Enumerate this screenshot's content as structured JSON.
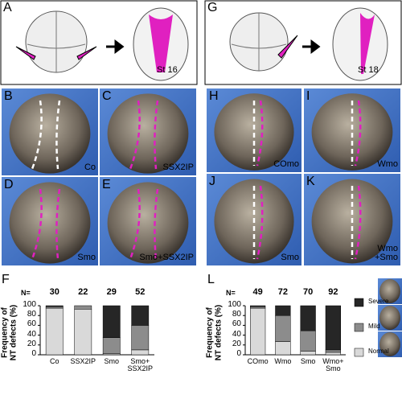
{
  "schematics": [
    {
      "letter": "A",
      "stage": "St 16"
    },
    {
      "letter": "G",
      "stage": "St 18"
    }
  ],
  "photos": [
    {
      "letter": "B",
      "label": "Co"
    },
    {
      "letter": "C",
      "label": "SSX2IP"
    },
    {
      "letter": "D",
      "label": "Smo"
    },
    {
      "letter": "E",
      "label": "Smo+SSX2IP"
    },
    {
      "letter": "H",
      "label": "COmo"
    },
    {
      "letter": "I",
      "label": "Wmo"
    },
    {
      "letter": "J",
      "label": "Smo"
    },
    {
      "letter": "K",
      "label": "Wmo\n+Smo"
    }
  ],
  "chart_data": [
    {
      "type": "bar",
      "stacked": true,
      "title": "F",
      "n_label": "N=",
      "n": [
        30,
        22,
        29,
        52
      ],
      "ylabel": "Frequency of\nNT defects (%)",
      "categories": [
        "Co",
        "SSX2IP",
        "Smo",
        "Smo+\nSSX2IP"
      ],
      "series": [
        {
          "color": "#d9d9d9",
          "values": [
            95,
            93,
            2,
            10
          ]
        },
        {
          "color": "#8c8c8c",
          "values": [
            3,
            7,
            33,
            50
          ]
        },
        {
          "color": "#262626",
          "values": [
            2,
            0,
            65,
            40
          ]
        }
      ],
      "ylim": [
        0,
        100
      ],
      "yticks": [
        0,
        20,
        40,
        60,
        80,
        100
      ]
    },
    {
      "type": "bar",
      "stacked": true,
      "title": "L",
      "n_label": "N=",
      "n": [
        49,
        72,
        70,
        92
      ],
      "ylabel": "Frequency of\nNT defects (%)",
      "categories": [
        "COmo",
        "Wmo",
        "Smo",
        "Wmo+\nSmo"
      ],
      "series": [
        {
          "name": "Normal",
          "color": "#d9d9d9",
          "values": [
            95,
            27,
            7,
            5
          ]
        },
        {
          "name": "Mild",
          "color": "#8c8c8c",
          "values": [
            3,
            53,
            42,
            5
          ]
        },
        {
          "name": "Severe",
          "color": "#262626",
          "values": [
            2,
            20,
            51,
            90
          ]
        }
      ],
      "ylim": [
        0,
        100
      ],
      "yticks": [
        0,
        20,
        40,
        60,
        80,
        100
      ],
      "legend": "right"
    }
  ]
}
